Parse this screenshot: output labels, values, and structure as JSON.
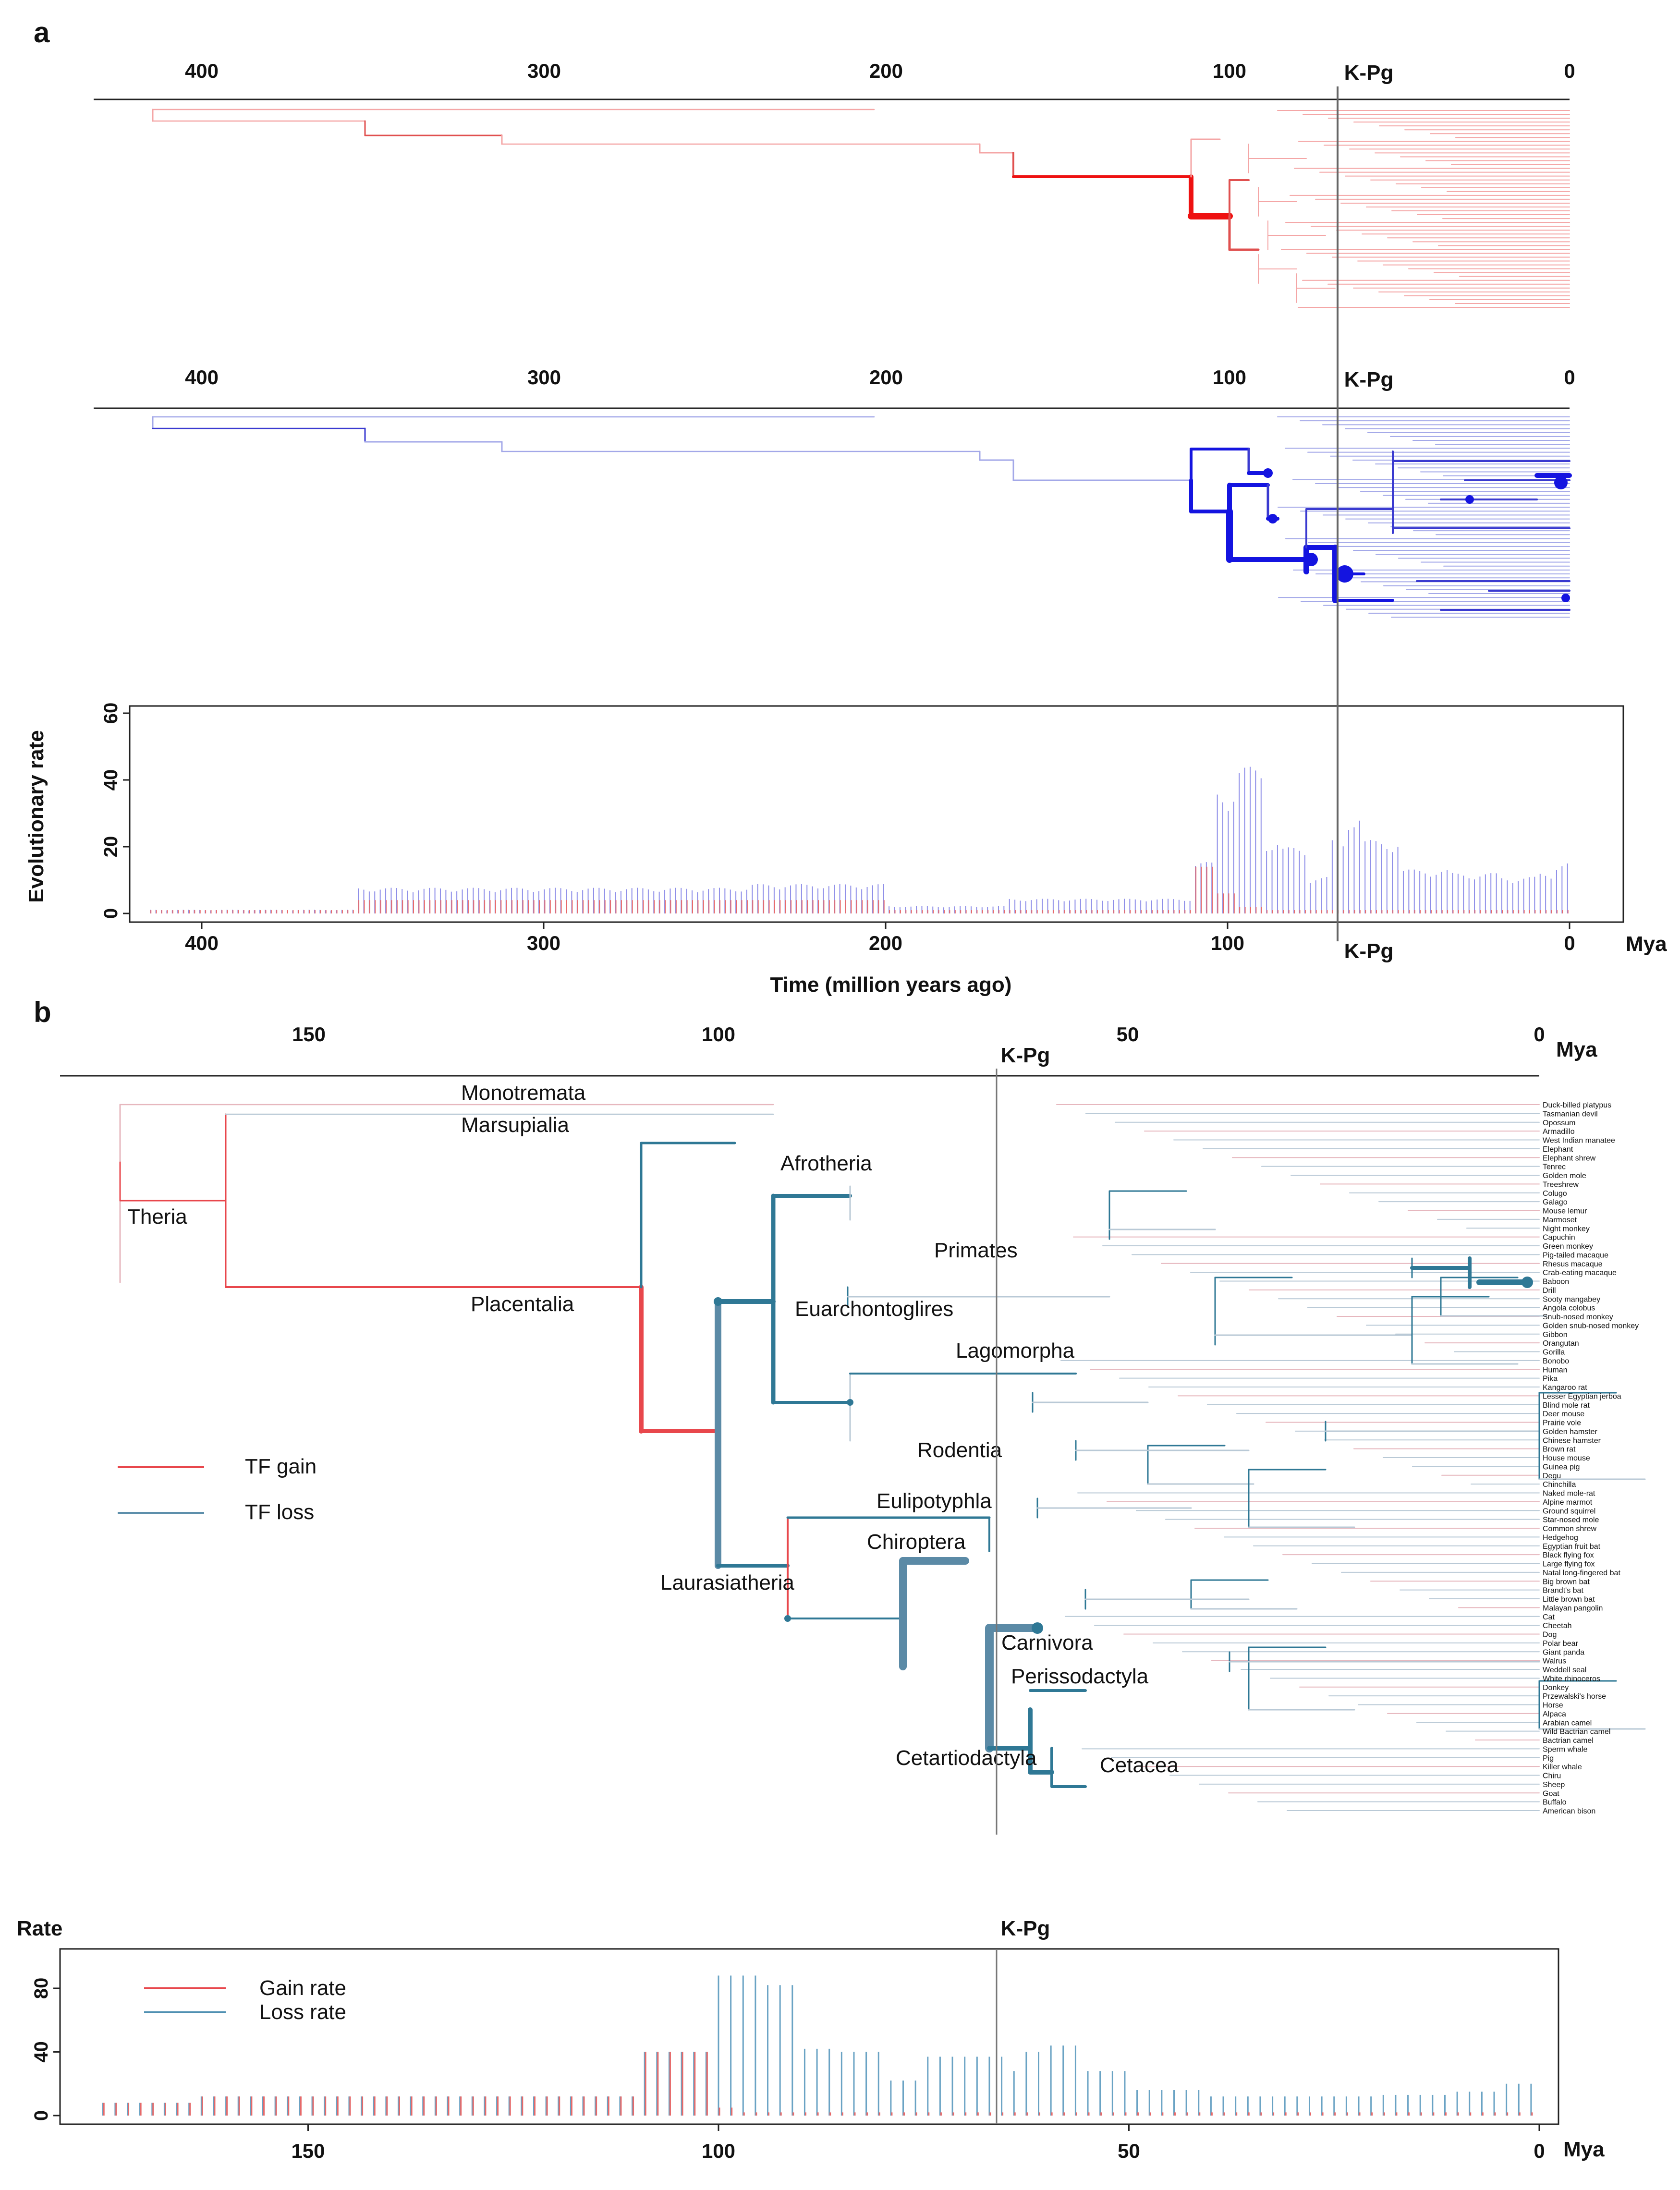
{
  "panel_a": {
    "letter": "a",
    "top_axis_ticks": [
      "400",
      "300",
      "200",
      "100",
      "0"
    ],
    "kpg_label": "K-Pg",
    "mya_label": "Mya",
    "rate_plot": {
      "ylabel": "Evolutionary rate",
      "y_ticks": [
        "0",
        "20",
        "40",
        "60"
      ],
      "x_ticks": [
        "400",
        "300",
        "200",
        "100",
        "0"
      ],
      "xlabel": "Time (million years ago)"
    }
  },
  "panel_b": {
    "letter": "b",
    "top_axis_ticks": [
      "150",
      "100",
      "50",
      "0"
    ],
    "kpg_label": "K-Pg",
    "mya_label": "Mya",
    "legend": {
      "gain": "TF gain",
      "loss": "TF loss"
    },
    "clades": [
      "Monotremata",
      "Marsupialia",
      "Theria",
      "Afrotheria",
      "Placentalia",
      "Primates",
      "Euarchontoglires",
      "Lagomorpha",
      "Rodentia",
      "Eulipotyphla",
      "Chiroptera",
      "Laurasiatheria",
      "Carnivora",
      "Perissodactyla",
      "Cetartiodactyla",
      "Cetacea"
    ],
    "species": [
      "Duck-billed platypus",
      "Tasmanian devil",
      "Opossum",
      "Armadillo",
      "West Indian manatee",
      "Elephant",
      "Elephant shrew",
      "Tenrec",
      "Golden mole",
      "Treeshrew",
      "Colugo",
      "Galago",
      "Mouse lemur",
      "Marmoset",
      "Night monkey",
      "Capuchin",
      "Green monkey",
      "Pig-tailed macaque",
      "Rhesus macaque",
      "Crab-eating macaque",
      "Baboon",
      "Drill",
      "Sooty mangabey",
      "Angola colobus",
      "Snub-nosed monkey",
      "Golden snub-nosed monkey",
      "Gibbon",
      "Orangutan",
      "Gorilla",
      "Bonobo",
      "Human",
      "Pika",
      "Kangaroo rat",
      "Lesser Egyptian jerboa",
      "Blind mole rat",
      "Deer mouse",
      "Prairie vole",
      "Golden hamster",
      "Chinese hamster",
      "Brown rat",
      "House mouse",
      "Guinea pig",
      "Degu",
      "Chinchilla",
      "Naked mole-rat",
      "Alpine marmot",
      "Ground squirrel",
      "Star-nosed mole",
      "Common shrew",
      "Hedgehog",
      "Egyptian fruit bat",
      "Black flying fox",
      "Large flying fox",
      "Natal long-fingered bat",
      "Big brown bat",
      "Brandt's bat",
      "Little brown bat",
      "Malayan pangolin",
      "Cat",
      "Cheetah",
      "Dog",
      "Polar bear",
      "Giant panda",
      "Walrus",
      "Weddell seal",
      "White rhinoceros",
      "Donkey",
      "Przewalski's horse",
      "Horse",
      "Alpaca",
      "Arabian camel",
      "Wild Bactrian camel",
      "Bactrian camel",
      "Sperm whale",
      "Pig",
      "Killer whale",
      "Chiru",
      "Sheep",
      "Goat",
      "Buffalo",
      "American bison"
    ],
    "rate_plot": {
      "ylabel": "Rate",
      "y_ticks": [
        "0",
        "40",
        "80"
      ],
      "x_ticks": [
        "150",
        "100",
        "50",
        "0"
      ],
      "legend_gain": "Gain rate",
      "legend_loss": "Loss rate"
    }
  },
  "colors": {
    "gain": "#e8474c",
    "loss": "#2f7895",
    "gain_a": "#ee1111",
    "loss_a": "#1a1acc"
  },
  "chart_data": [
    {
      "type": "bar",
      "title": "",
      "xlabel": "Time (million years ago)",
      "ylabel": "Evolutionary rate",
      "xlim": [
        430,
        0
      ],
      "ylim": [
        0,
        60
      ],
      "x": [
        415,
        355,
        315,
        240,
        200,
        165,
        110,
        103,
        97,
        90,
        85,
        76,
        70,
        66,
        60,
        50,
        35,
        20,
        10,
        5,
        0
      ],
      "series": [
        {
          "name": "TF loss",
          "values": [
            1,
            7,
            7,
            8,
            2,
            4,
            14,
            34,
            40,
            20,
            18,
            10,
            20,
            27,
            20,
            12,
            11,
            10,
            11,
            14,
            20
          ]
        },
        {
          "name": "TF gain",
          "values": [
            1,
            4,
            4,
            4,
            1,
            1,
            14,
            6,
            2,
            1,
            1,
            1,
            1,
            1,
            1,
            1,
            1,
            1,
            1,
            1,
            1
          ]
        }
      ]
    },
    {
      "type": "bar",
      "title": "",
      "xlabel": "Mya",
      "ylabel": "Rate",
      "xlim": [
        180,
        0
      ],
      "ylim": [
        0,
        100
      ],
      "x": [
        175,
        163,
        150,
        120,
        109,
        102,
        100,
        97,
        95,
        90,
        85,
        80,
        75,
        68,
        65,
        63,
        60,
        55,
        50,
        40,
        30,
        20,
        10,
        5,
        0
      ],
      "series": [
        {
          "name": "Gain rate",
          "values": [
            8,
            12,
            12,
            12,
            40,
            40,
            5,
            2,
            2,
            2,
            2,
            2,
            2,
            2,
            2,
            2,
            2,
            2,
            2,
            2,
            2,
            2,
            2,
            2,
            2
          ]
        },
        {
          "name": "Loss rate",
          "values": [
            8,
            12,
            12,
            12,
            40,
            40,
            88,
            88,
            82,
            42,
            40,
            22,
            37,
            37,
            28,
            40,
            44,
            28,
            16,
            12,
            12,
            13,
            15,
            20,
            23
          ]
        }
      ]
    }
  ]
}
